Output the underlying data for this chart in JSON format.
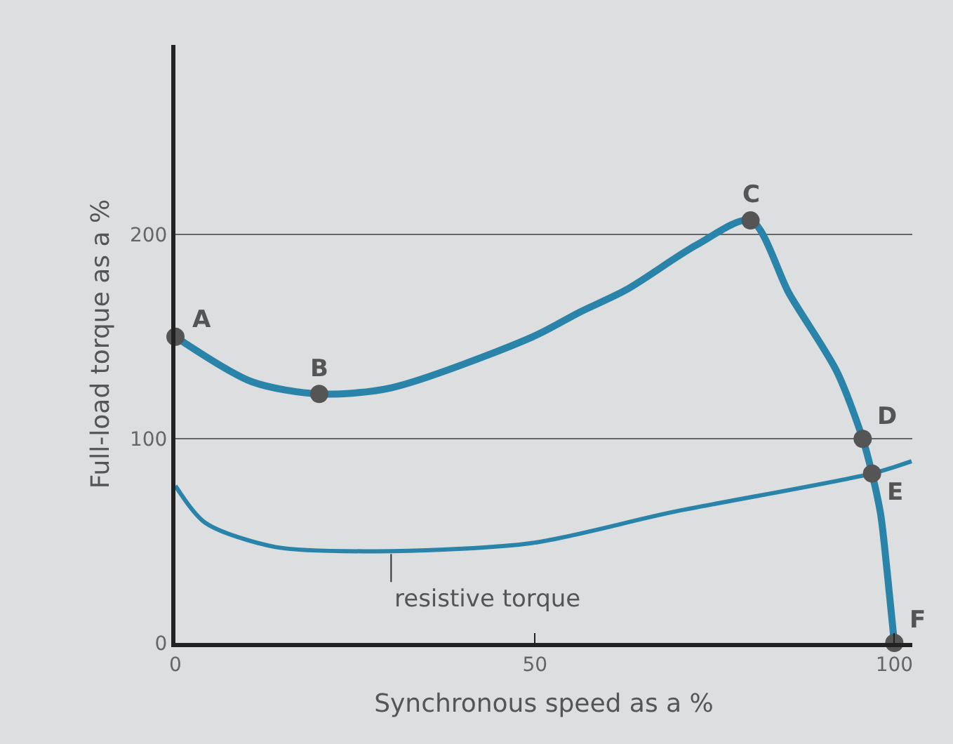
{
  "chart_data": {
    "type": "line",
    "xlabel": "Synchronous speed as a %",
    "ylabel": "Full-load torque as a %",
    "xlim": [
      0,
      102.5
    ],
    "ylim": [
      0,
      293
    ],
    "xticks": [
      0,
      50,
      100
    ],
    "yticks": [
      0,
      100,
      200
    ],
    "grid": "y",
    "marker": "none",
    "line_style": "solid",
    "series": [
      {
        "color": "#2a84aa",
        "x": [
          0,
          10.6,
          20,
          30,
          49.7,
          56.2,
          62.7,
          72.5,
          80,
          85.4,
          92,
          95.6,
          96.9,
          98.1,
          99,
          100
        ],
        "values": [
          150,
          128,
          122,
          125,
          150,
          162,
          173,
          195,
          207,
          171,
          133,
          100,
          83,
          63,
          35,
          0
        ]
      },
      {
        "color": "#2a84aa",
        "x": [
          0,
          4.1,
          13.9,
          30.2,
          49.7,
          69,
          96.9,
          102.4
        ],
        "values": [
          77,
          59,
          47,
          45,
          49,
          64,
          83,
          89
        ]
      },
      {
        "type": "scatter",
        "color": "#555555",
        "marker": "circle",
        "x": [
          0,
          20,
          80,
          95.6,
          96.9,
          100
        ],
        "values": [
          150,
          122,
          207,
          100,
          83,
          0
        ]
      }
    ],
    "annotations": [
      {
        "text": "A",
        "x": 0,
        "y": 150
      },
      {
        "text": "B",
        "x": 20,
        "y": 122
      },
      {
        "text": "C",
        "x": 80,
        "y": 207
      },
      {
        "text": "D",
        "x": 95.6,
        "y": 100
      },
      {
        "text": "E",
        "x": 96.9,
        "y": 83
      },
      {
        "text": "F",
        "x": 100,
        "y": 0
      },
      {
        "text": "resistive torque",
        "x": 30,
        "y": 45
      }
    ]
  }
}
